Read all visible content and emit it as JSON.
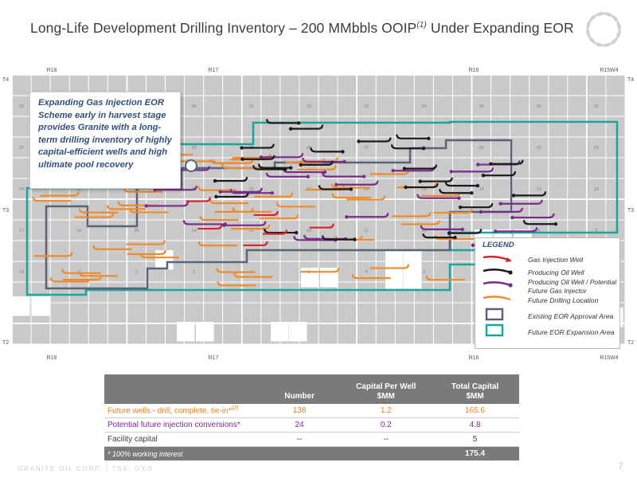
{
  "title": {
    "text": "Long-Life Development Drilling Inventory – 200 MMbbls OOIP",
    "footnote_ref": "(1)",
    "suffix": " Under Expanding EOR"
  },
  "map": {
    "range_labels_top": [
      "R18",
      "R17",
      "R16",
      "R15W4"
    ],
    "range_labels_bottom": [
      "R18",
      "R17",
      "R16",
      "R15W4"
    ],
    "township_labels_left": [
      "T4",
      "T3",
      "T2"
    ],
    "township_labels_right": [
      "T4",
      "T3",
      "T2"
    ],
    "section_numbers": [
      "33",
      "34",
      "35",
      "36",
      "31",
      "32",
      "33",
      "34",
      "35",
      "36",
      "31",
      "27",
      "26",
      "25",
      "30",
      "29",
      "28",
      "27",
      "26",
      "25",
      "22",
      "23",
      "24",
      "19",
      "20",
      "21",
      "22",
      "23",
      "24",
      "15",
      "14",
      "13",
      "18",
      "17",
      "16",
      "15",
      "14",
      "13",
      "10",
      "11",
      "12",
      "7",
      "8",
      "9",
      "10",
      "11",
      "2",
      "1",
      "6",
      "5",
      "4",
      "3",
      "2",
      "1"
    ],
    "colors": {
      "grid_fill": "#c9c9c9",
      "grid_line": "#ffffff",
      "existing_area": "#5a6278",
      "expansion_area": "#1aa6a0",
      "gas_injection": "#d9242a",
      "producing_oil": "#1b1b1b",
      "producing_potential": "#7a2c8c",
      "future_drilling": "#f08a2a"
    }
  },
  "callout": {
    "text": "Expanding Gas Injection EOR Scheme early in harvest stage provides Granite with a long-term drilling inventory of highly capital-efficient wells and high ultimate pool recovery"
  },
  "legend": {
    "title": "LEGEND",
    "items": [
      {
        "label": "Gas Injection Well",
        "color": "#d9242a"
      },
      {
        "label": "Producing Oil Well",
        "color": "#1b1b1b"
      },
      {
        "label": "Producing Oil Well / Potential Future Gas Injector",
        "color": "#7a2c8c"
      },
      {
        "label": "Future Drilling Location",
        "color": "#f08a2a"
      },
      {
        "label": "Existing EOR Approval Area",
        "color": "#5a6278"
      },
      {
        "label": "Future EOR Expansion Area",
        "color": "#1aa6a0"
      }
    ]
  },
  "table": {
    "headers": [
      "",
      "Number",
      "Capital Per Well\n$MM",
      "Total Capital\n$MM"
    ],
    "rows": [
      {
        "label": "Future wells - drill, complete, tie-in*",
        "sup": "(2)",
        "number": "138",
        "per_well": "1.2",
        "total": "165.6"
      },
      {
        "label": "Potential future injection conversions*",
        "sup": "",
        "number": "24",
        "per_well": "0.2",
        "total": "4.8"
      },
      {
        "label": "Facility capital",
        "sup": "",
        "number": "--",
        "per_well": "--",
        "total": "5"
      }
    ],
    "footer": {
      "note": "* 100% working interest",
      "total": "175.4"
    }
  },
  "footer": {
    "company": "GRANITE OIL CORP. | TSX: GXO",
    "page": "7"
  }
}
